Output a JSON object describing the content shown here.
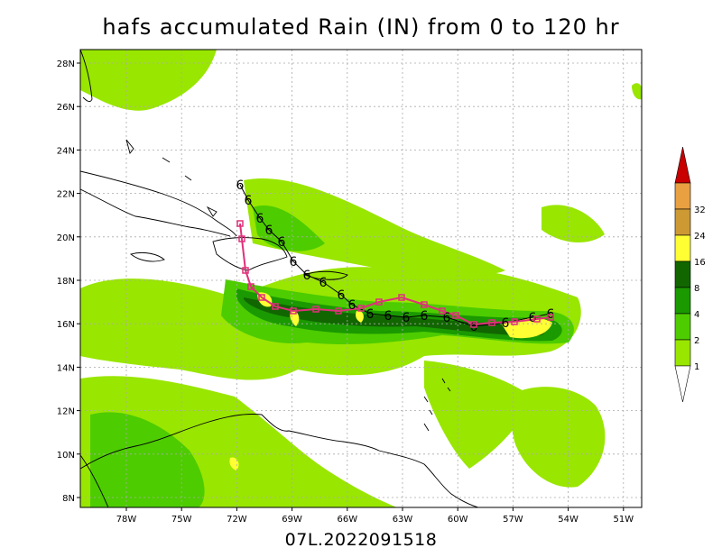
{
  "title": "hafs accumulated Rain (IN) from 0 to 120 hr",
  "subtitle": "07L.2022091518",
  "lat_labels": [
    "28N",
    "26N",
    "24N",
    "22N",
    "20N",
    "18N",
    "16N",
    "14N",
    "12N",
    "10N",
    "8N"
  ],
  "lon_labels": [
    "78W",
    "75W",
    "72W",
    "69W",
    "66W",
    "63W",
    "60W",
    "57W",
    "54W",
    "51W"
  ],
  "colorbar": {
    "labels": [
      "1",
      "2",
      "4",
      "8",
      "16",
      "24",
      "32"
    ],
    "colors": [
      "#99e600",
      "#4dcc00",
      "#1a9900",
      "#116600",
      "#ffff33",
      "#cc9933",
      "#e8a040",
      "#c80000"
    ]
  },
  "track_symbol": "6",
  "colors": {
    "track_black": "#000000",
    "track_pink": "#e0307a"
  }
}
